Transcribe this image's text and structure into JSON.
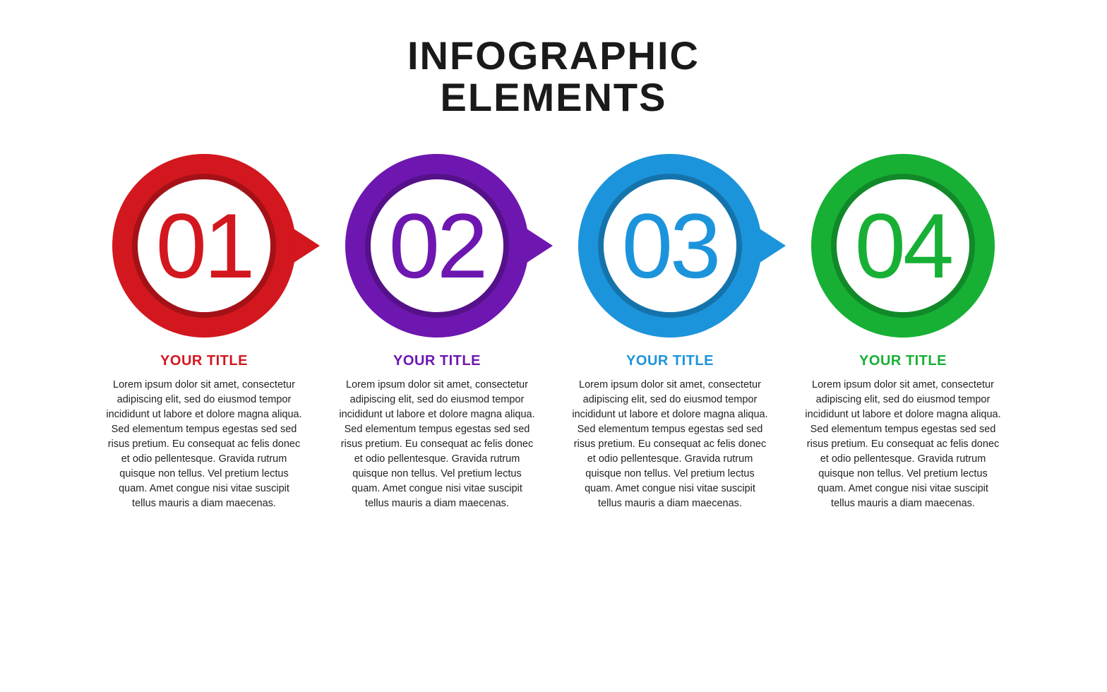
{
  "title_line1": "INFOGRAPHIC",
  "title_line2": "ELEMENTS",
  "background_color": "#ffffff",
  "title_color": "#1a1a1a",
  "title_fontsize": 56,
  "circle_outer_diameter": 260,
  "ring_thickness": 36,
  "number_fontsize": 130,
  "step_title_fontsize": 20,
  "body_fontsize": 14.5,
  "body_color": "#222222",
  "steps": [
    {
      "number": "01",
      "title": "YOUR TITLE",
      "color": "#d3171e",
      "has_arrow": true,
      "body": "Lorem ipsum dolor sit amet, consectetur adipiscing elit, sed do eiusmod tempor incididunt ut labore et dolore magna aliqua. Sed elementum tempus egestas sed sed risus pretium. Eu consequat ac felis donec et odio pellentesque. Gravida rutrum quisque non tellus. Vel pretium lectus quam. Amet congue nisi vitae suscipit tellus mauris a diam maecenas."
    },
    {
      "number": "02",
      "title": "YOUR TITLE",
      "color": "#6d17b0",
      "has_arrow": true,
      "body": "Lorem ipsum dolor sit amet, consectetur adipiscing elit, sed do eiusmod tempor incididunt ut labore et dolore magna aliqua. Sed elementum tempus egestas sed sed risus pretium. Eu consequat ac felis donec et odio pellentesque. Gravida rutrum quisque non tellus. Vel pretium lectus quam. Amet congue nisi vitae suscipit tellus mauris a diam maecenas."
    },
    {
      "number": "03",
      "title": "YOUR TITLE",
      "color": "#1c94db",
      "has_arrow": true,
      "body": "Lorem ipsum dolor sit amet, consectetur adipiscing elit, sed do eiusmod tempor incididunt ut labore et dolore magna aliqua. Sed elementum tempus egestas sed sed risus pretium. Eu consequat ac felis donec et odio pellentesque. Gravida rutrum quisque non tellus. Vel pretium lectus quam. Amet congue nisi vitae suscipit tellus mauris a diam maecenas."
    },
    {
      "number": "04",
      "title": "YOUR TITLE",
      "color": "#17b035",
      "has_arrow": false,
      "body": "Lorem ipsum dolor sit amet, consectetur adipiscing elit, sed do eiusmod tempor incididunt ut labore et dolore magna aliqua. Sed elementum tempus egestas sed sed risus pretium. Eu consequat ac felis donec et odio pellentesque. Gravida rutrum quisque non tellus. Vel pretium lectus quam. Amet congue nisi vitae suscipit tellus mauris a diam maecenas."
    }
  ]
}
